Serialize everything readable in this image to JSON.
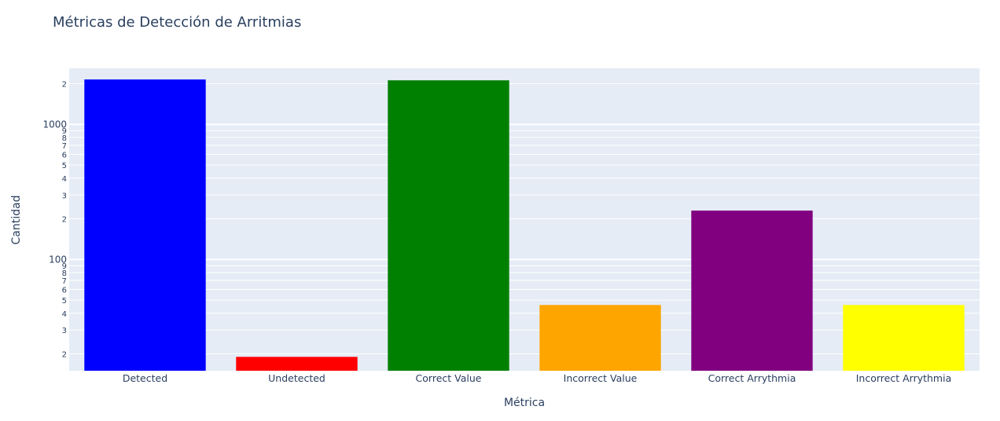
{
  "chart_data": {
    "type": "bar",
    "title": "Métricas de Detección de Arritmias",
    "xlabel": "Métrica",
    "ylabel": "Cantidad",
    "yscale": "log",
    "ylim": [
      15,
      2600
    ],
    "grid": true,
    "legend": "none",
    "categories": [
      "Detected",
      "Undetected",
      "Correct Value",
      "Incorrect Value",
      "Correct Arrythmia",
      "Incorrect Arrythmia"
    ],
    "values": [
      2150,
      19,
      2120,
      46,
      230,
      46
    ],
    "colors": [
      "#0000ff",
      "#ff0000",
      "#008000",
      "#ffa500",
      "#800080",
      "#ffff00"
    ],
    "ticks": [
      {
        "value": 20,
        "label": "2",
        "major": false
      },
      {
        "value": 30,
        "label": "3",
        "major": false
      },
      {
        "value": 40,
        "label": "4",
        "major": false
      },
      {
        "value": 50,
        "label": "5",
        "major": false
      },
      {
        "value": 60,
        "label": "6",
        "major": false
      },
      {
        "value": 70,
        "label": "7",
        "major": false
      },
      {
        "value": 80,
        "label": "8",
        "major": false
      },
      {
        "value": 90,
        "label": "9",
        "major": false
      },
      {
        "value": 100,
        "label": "100",
        "major": true
      },
      {
        "value": 200,
        "label": "2",
        "major": false
      },
      {
        "value": 300,
        "label": "3",
        "major": false
      },
      {
        "value": 400,
        "label": "4",
        "major": false
      },
      {
        "value": 500,
        "label": "5",
        "major": false
      },
      {
        "value": 600,
        "label": "6",
        "major": false
      },
      {
        "value": 700,
        "label": "7",
        "major": false
      },
      {
        "value": 800,
        "label": "8",
        "major": false
      },
      {
        "value": 900,
        "label": "9",
        "major": false
      },
      {
        "value": 1000,
        "label": "1000",
        "major": true
      },
      {
        "value": 2000,
        "label": "2",
        "major": false
      }
    ],
    "plot_bg": "#e5ecf6",
    "grid_color": "#ffffff",
    "text_color": "#2a3f5f"
  }
}
